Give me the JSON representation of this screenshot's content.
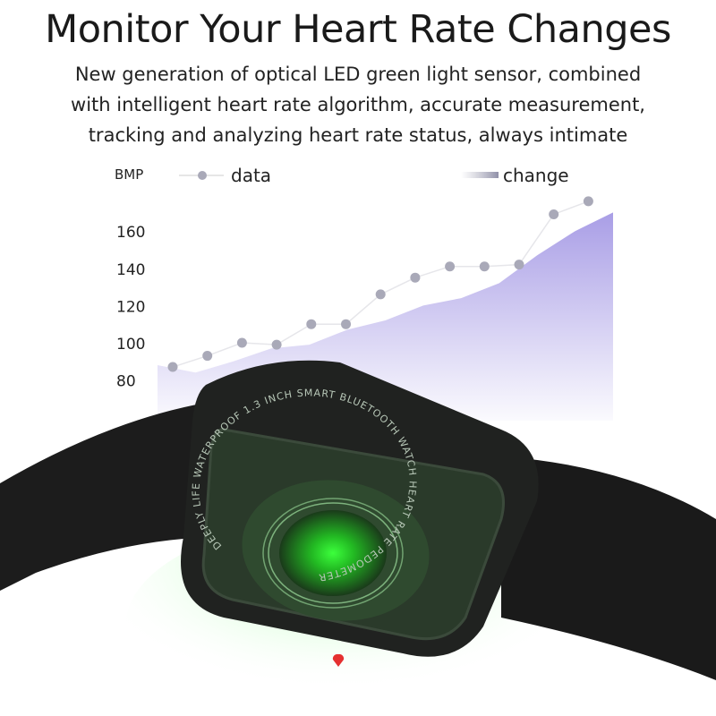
{
  "header": {
    "title": "Monitor Your Heart Rate Changes",
    "subtitle_lines": [
      "New generation of optical LED green light sensor, combined",
      "with intelligent heart rate algorithm, accurate measurement,",
      "tracking and analyzing heart rate status, always intimate"
    ]
  },
  "chart_data": {
    "type": "line",
    "ylabel": "BMP",
    "yticks": [
      80,
      100,
      120,
      140,
      160
    ],
    "ylim": [
      80,
      180
    ],
    "grid": false,
    "legend_placement": "top",
    "series": [
      {
        "name": "data",
        "kind": "line-with-markers",
        "color": "#a9a9b8",
        "values": [
          87,
          93,
          100,
          99,
          110,
          110,
          126,
          135,
          141,
          141,
          142,
          169,
          176
        ]
      },
      {
        "name": "change",
        "kind": "area",
        "color": "#a99ee6",
        "values": [
          88,
          84,
          90,
          97,
          99,
          107,
          112,
          120,
          124,
          132,
          147,
          160,
          170
        ]
      }
    ]
  },
  "product": {
    "ring_text": "DEEPLY LIFE WATERPROOF 1.3 INCH SMART BLUETOOTH WATCH HEART RATE PEDOMETER",
    "sensor_color": "#3cff3c"
  }
}
